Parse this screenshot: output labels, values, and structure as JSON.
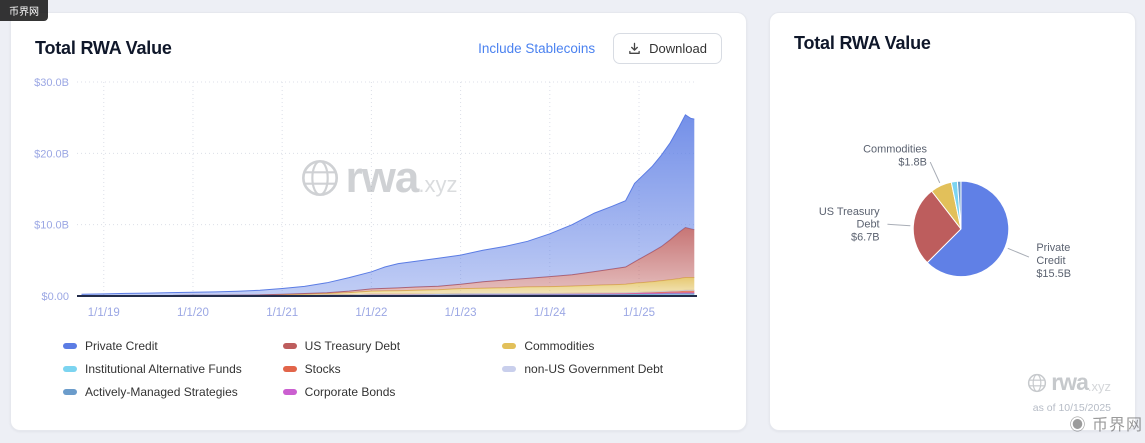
{
  "overlay": {
    "site_tag": "币界网",
    "corner_watermark": "◉ 币界网"
  },
  "icons": {
    "download": "download-icon",
    "globe": "globe-icon"
  },
  "left_card": {
    "title": "Total RWA Value",
    "include_stablecoins": "Include Stablecoins",
    "download": "Download",
    "watermark_brand": "rwa",
    "watermark_tld": ".xyz"
  },
  "right_card": {
    "title": "Total RWA Value",
    "watermark_brand": "rwa",
    "watermark_tld": ".xyz",
    "as_of": "as of 10/15/2025"
  },
  "chart_data": [
    {
      "type": "area",
      "stacked": true,
      "title": "Total RWA Value",
      "unit": "USD billions",
      "grid": true,
      "ylim": [
        0,
        30
      ],
      "x_range": [
        2018.7,
        2025.65
      ],
      "y_ticks": {
        "values": [
          0,
          10,
          20,
          30
        ],
        "labels": [
          "$0.00",
          "$10.0B",
          "$20.0B",
          "$30.0B"
        ]
      },
      "x_ticks": {
        "values": [
          2019,
          2020,
          2021,
          2022,
          2023,
          2024,
          2025
        ],
        "labels": [
          "1/1/19",
          "1/1/20",
          "1/1/21",
          "1/1/22",
          "1/1/23",
          "1/1/24",
          "1/1/25"
        ]
      },
      "x": [
        2018.75,
        2019.0,
        2019.25,
        2019.5,
        2019.75,
        2020.0,
        2020.25,
        2020.5,
        2020.75,
        2021.0,
        2021.25,
        2021.5,
        2021.75,
        2022.0,
        2022.15,
        2022.3,
        2022.5,
        2022.75,
        2023.0,
        2023.25,
        2023.5,
        2023.75,
        2024.0,
        2024.25,
        2024.5,
        2024.7,
        2024.85,
        2024.95,
        2025.05,
        2025.15,
        2025.25,
        2025.35,
        2025.45,
        2025.52,
        2025.58,
        2025.62
      ],
      "series": [
        {
          "name": "Institutional Alternative Funds",
          "color": "#7cd4f0",
          "values": [
            0.05,
            0.05,
            0.06,
            0.06,
            0.07,
            0.08,
            0.08,
            0.09,
            0.1,
            0.1,
            0.12,
            0.15,
            0.18,
            0.2,
            0.2,
            0.2,
            0.22,
            0.24,
            0.25,
            0.25,
            0.24,
            0.22,
            0.2,
            0.18,
            0.17,
            0.16,
            0.15,
            0.15,
            0.14,
            0.14,
            0.13,
            0.13,
            0.12,
            0.12,
            0.12,
            0.12
          ]
        },
        {
          "name": "Actively-Managed Strategies",
          "color": "#6b9ccb",
          "values": [
            0,
            0,
            0,
            0,
            0,
            0,
            0,
            0,
            0,
            0,
            0,
            0,
            0,
            0,
            0,
            0,
            0,
            0,
            0.02,
            0.02,
            0.03,
            0.04,
            0.05,
            0.07,
            0.09,
            0.1,
            0.12,
            0.14,
            0.16,
            0.18,
            0.2,
            0.22,
            0.24,
            0.25,
            0.25,
            0.25
          ]
        },
        {
          "name": "Corporate Bonds",
          "color": "#cb5fd0",
          "values": [
            0,
            0,
            0,
            0,
            0,
            0,
            0,
            0,
            0,
            0,
            0,
            0,
            0,
            0.02,
            0.02,
            0.02,
            0.02,
            0.02,
            0.03,
            0.03,
            0.03,
            0.04,
            0.04,
            0.05,
            0.05,
            0.06,
            0.06,
            0.06,
            0.07,
            0.07,
            0.07,
            0.08,
            0.08,
            0.08,
            0.08,
            0.08
          ]
        },
        {
          "name": "Stocks",
          "color": "#e2654a",
          "values": [
            0,
            0,
            0,
            0,
            0,
            0,
            0,
            0,
            0,
            0,
            0,
            0,
            0,
            0.02,
            0.02,
            0.02,
            0.02,
            0.02,
            0.02,
            0.03,
            0.03,
            0.04,
            0.05,
            0.06,
            0.07,
            0.08,
            0.09,
            0.1,
            0.12,
            0.15,
            0.18,
            0.2,
            0.25,
            0.3,
            0.3,
            0.3
          ]
        },
        {
          "name": "non-US Government Debt",
          "color": "#c9cfec",
          "values": [
            0,
            0,
            0,
            0,
            0,
            0,
            0,
            0,
            0,
            0,
            0,
            0,
            0,
            0,
            0,
            0,
            0,
            0,
            0.02,
            0.02,
            0.02,
            0.03,
            0.03,
            0.03,
            0.04,
            0.04,
            0.04,
            0.04,
            0.05,
            0.05,
            0.05,
            0.05,
            0.05,
            0.05,
            0.05,
            0.05
          ]
        },
        {
          "name": "Commodities",
          "color": "#e2c05a",
          "values": [
            0,
            0,
            0,
            0,
            0,
            0,
            0,
            0.03,
            0.05,
            0.1,
            0.15,
            0.2,
            0.3,
            0.45,
            0.48,
            0.5,
            0.55,
            0.6,
            0.7,
            0.75,
            0.8,
            0.9,
            0.95,
            1.0,
            1.1,
            1.15,
            1.2,
            1.3,
            1.35,
            1.4,
            1.5,
            1.6,
            1.7,
            1.8,
            1.8,
            1.8
          ]
        },
        {
          "name": "US Treasury Debt",
          "color": "#bd5d5d",
          "values": [
            0,
            0,
            0,
            0,
            0,
            0,
            0,
            0,
            0,
            0.05,
            0.08,
            0.1,
            0.2,
            0.3,
            0.35,
            0.4,
            0.45,
            0.5,
            0.6,
            0.9,
            1.1,
            1.2,
            1.4,
            1.6,
            1.9,
            2.2,
            2.4,
            3.0,
            3.6,
            4.2,
            4.8,
            5.6,
            6.5,
            7.0,
            6.8,
            6.7
          ]
        },
        {
          "name": "Private Credit",
          "color": "#5b7ce4",
          "values": [
            0.2,
            0.25,
            0.3,
            0.35,
            0.4,
            0.45,
            0.5,
            0.55,
            0.65,
            0.8,
            1.0,
            1.4,
            1.9,
            2.4,
            3.0,
            3.4,
            3.6,
            3.9,
            4.1,
            4.4,
            4.7,
            5.2,
            6.0,
            7.0,
            8.2,
            8.8,
            9.3,
            11.0,
            11.5,
            12.0,
            12.8,
            13.6,
            14.8,
            15.8,
            15.5,
            15.5
          ]
        }
      ],
      "legend_columns": [
        [
          {
            "label": "Private Credit",
            "color": "#5b7ce4"
          },
          {
            "label": "Institutional Alternative Funds",
            "color": "#7cd4f0"
          },
          {
            "label": "Actively-Managed Strategies",
            "color": "#6b9ccb"
          }
        ],
        [
          {
            "label": "US Treasury Debt",
            "color": "#bd5d5d"
          },
          {
            "label": "Stocks",
            "color": "#e2654a"
          },
          {
            "label": "Corporate Bonds",
            "color": "#cb5fd0"
          }
        ],
        [
          {
            "label": "Commodities",
            "color": "#e2c05a"
          },
          {
            "label": "non-US Government Debt",
            "color": "#c9cfec"
          }
        ]
      ]
    },
    {
      "type": "pie",
      "title": "Total RWA Value",
      "unit": "USD billions",
      "slices": [
        {
          "label": "Private Credit",
          "label_lines": [
            "Private",
            "Credit"
          ],
          "value": 15.5,
          "value_label": "$15.5B",
          "color": "#6080e6"
        },
        {
          "label": "US Treasury Debt",
          "label_lines": [
            "US Treasury",
            "Debt"
          ],
          "value": 6.7,
          "value_label": "$6.7B",
          "color": "#bd5d5d"
        },
        {
          "label": "Commodities",
          "label_lines": [
            "Commodities"
          ],
          "value": 1.8,
          "value_label": "$1.8B",
          "color": "#e2c05a"
        },
        {
          "label": "",
          "value": 0.5,
          "color": "#7cd4f0"
        },
        {
          "label": "",
          "value": 0.3,
          "color": "#6b9ccb"
        }
      ]
    }
  ]
}
